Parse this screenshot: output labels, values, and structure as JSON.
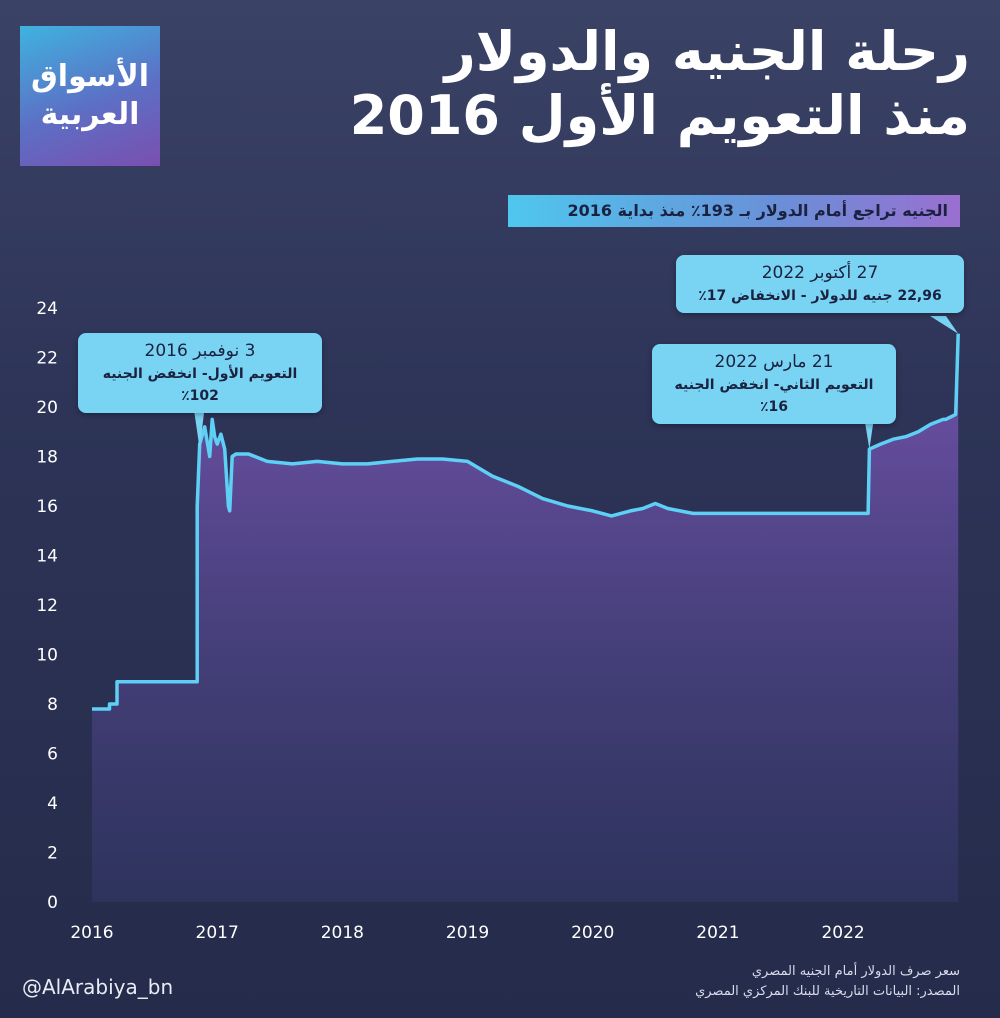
{
  "logo": {
    "line1": "الأسواق",
    "line2": "العربية"
  },
  "title": {
    "line1": "رحلة الجنيه والدولار",
    "line2": "منذ التعويم الأول 2016"
  },
  "subtitle": "الجنيه تراجع أمام الدولار بـ 193٪ منذ بداية 2016",
  "callouts": [
    {
      "date": "3 نوفمبر 2016",
      "text": "التعويم الأول- انخفض الجنيه 102٪"
    },
    {
      "date": "21 مارس 2022",
      "text": "التعويم الثاني- انخفض الجنيه 16٪"
    },
    {
      "date": "27 أكتوبر 2022",
      "text": "22,96 جنيه للدولار - الانخفاض 17٪"
    }
  ],
  "footer": {
    "handle": "@AlArabiya_bn",
    "source_line1": "سعر صرف الدولار أمام الجنيه المصري",
    "source_line2": "المصدر: البيانات التاريخية للبنك المركزي المصري"
  },
  "colors": {
    "line": "#5fd0f5",
    "callout": "#79d4f4",
    "area_top": "#8a5cc8",
    "area_bottom": "#3b3f7a"
  },
  "chart_data": {
    "type": "area",
    "title": "",
    "xlabel": "",
    "ylabel": "",
    "ylim": [
      0,
      24
    ],
    "xlim": [
      2016.0,
      2022.95
    ],
    "yticks": [
      0,
      2,
      4,
      6,
      8,
      10,
      12,
      14,
      16,
      18,
      20,
      22,
      24
    ],
    "xticks": [
      "2016",
      "2017",
      "2018",
      "2019",
      "2020",
      "2021",
      "2022"
    ],
    "grid": false,
    "series": [
      {
        "x": [
          2016.0,
          2016.14,
          2016.14,
          2016.2,
          2016.2,
          2016.84,
          2016.84,
          2016.86,
          2016.9,
          2016.94,
          2016.96,
          2016.98,
          2017.0,
          2017.03,
          2017.06,
          2017.09,
          2017.1,
          2017.12,
          2017.15,
          2017.25,
          2017.4,
          2017.6,
          2017.8,
          2018.0,
          2018.2,
          2018.4,
          2018.6,
          2018.8,
          2019.0,
          2019.2,
          2019.4,
          2019.6,
          2019.8,
          2020.0,
          2020.15,
          2020.3,
          2020.4,
          2020.5,
          2020.6,
          2020.8,
          2021.0,
          2021.3,
          2021.6,
          2021.9,
          2022.1,
          2022.2,
          2022.21,
          2022.3,
          2022.4,
          2022.5,
          2022.6,
          2022.7,
          2022.8,
          2022.82,
          2022.9,
          2022.92
        ],
        "y": [
          7.8,
          7.8,
          8.0,
          8.0,
          8.9,
          8.9,
          16.0,
          18.5,
          19.2,
          18.0,
          19.5,
          18.8,
          18.5,
          18.9,
          18.3,
          16.0,
          15.8,
          18.0,
          18.1,
          18.1,
          17.8,
          17.7,
          17.8,
          17.7,
          17.7,
          17.8,
          17.9,
          17.9,
          17.8,
          17.2,
          16.8,
          16.3,
          16.0,
          15.8,
          15.6,
          15.8,
          15.9,
          16.1,
          15.9,
          15.7,
          15.7,
          15.7,
          15.7,
          15.7,
          15.7,
          15.7,
          18.3,
          18.5,
          18.7,
          18.8,
          19.0,
          19.3,
          19.5,
          19.5,
          19.7,
          22.96
        ]
      }
    ]
  }
}
